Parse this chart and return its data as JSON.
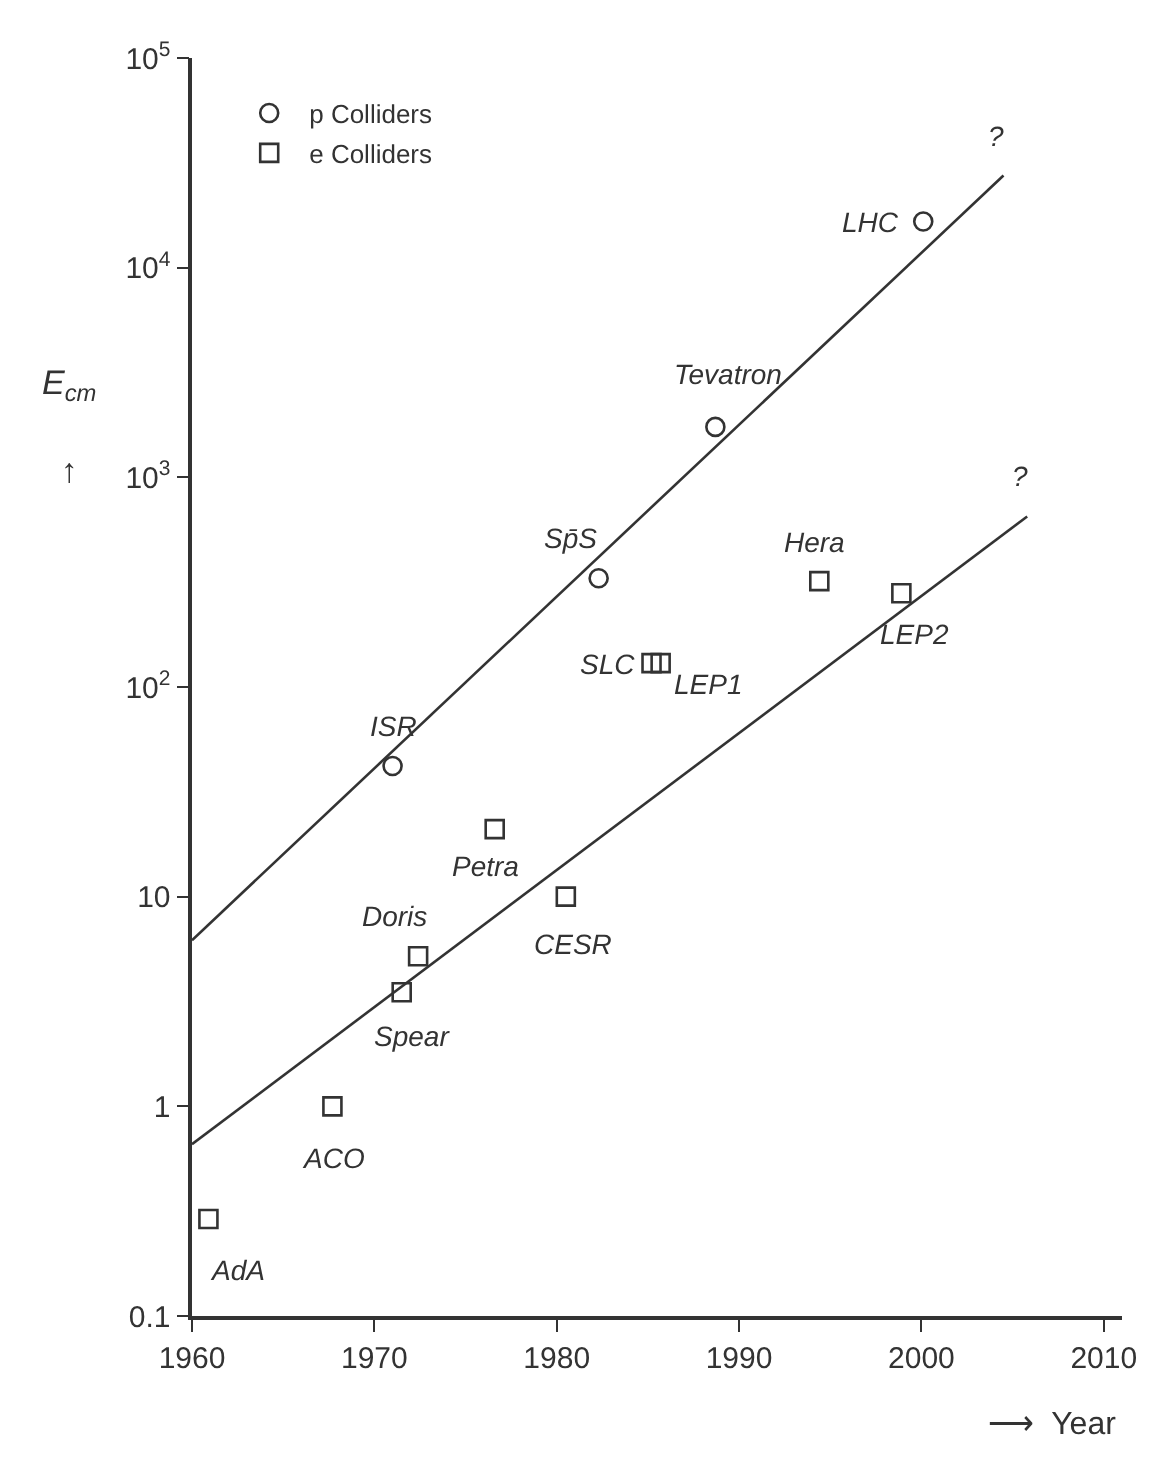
{
  "chart_data": {
    "type": "scatter",
    "xlabel": "⟶  Year",
    "ylabel": "E$_{cm}$\n\n↑",
    "xlim": [
      1960,
      2011
    ],
    "xticks": [
      1960,
      1970,
      1980,
      1990,
      2000,
      2010
    ],
    "ylim": [
      0.1,
      100000
    ],
    "log": true,
    "yticks": [
      0.1,
      1,
      10,
      {
        "value": 100,
        "label": "10$^{2}$"
      },
      {
        "value": 1000,
        "label": "10$^{3}$"
      },
      {
        "value": 10000,
        "label": "10$^{4}$"
      },
      {
        "value": 100000,
        "label": "10$^{5}$"
      }
    ],
    "grid": false,
    "legend": "top left",
    "series": [
      {
        "name": "p Colliders",
        "marker": "circle",
        "color": "#333333",
        "x": [
          1971,
          1982.3,
          1988.7,
          2000.1
        ],
        "values": [
          42,
          330,
          1740,
          16600
        ]
      },
      {
        "name": "e Colliders",
        "marker": "square",
        "color": "#333333",
        "x": [
          1960.9,
          1967.7,
          1971.5,
          1972.4,
          1976.6,
          1980.5,
          1985.2,
          1985.7,
          1994.4,
          1998.9
        ],
        "values": [
          0.29,
          1.0,
          3.5,
          5.2,
          21,
          10,
          130,
          130,
          320,
          280
        ]
      },
      {
        "type": "line",
        "line_style": "solid",
        "color": "#333333",
        "x": [
          1960,
          2004.5
        ],
        "values": [
          6.2,
          27500
        ]
      },
      {
        "type": "line",
        "line_style": "solid",
        "color": "#333333",
        "x": [
          1960,
          2005.8
        ],
        "values": [
          0.66,
          650
        ]
      }
    ],
    "annotations": [
      {
        "text": "AdA",
        "x": 1960.9,
        "y": 0.29
      },
      {
        "text": "ACO",
        "x": 1967.7,
        "y": 1.0
      },
      {
        "text": "Spear",
        "x": 1971.5,
        "y": 3.5
      },
      {
        "text": "Doris",
        "x": 1972.4,
        "y": 5.2
      },
      {
        "text": "Petra",
        "x": 1976.6,
        "y": 21
      },
      {
        "text": "CESR",
        "x": 1980.5,
        "y": 10
      },
      {
        "text": "ISR",
        "x": 1971,
        "y": 42
      },
      {
        "text": "Sp̄S",
        "x": 1982.3,
        "y": 330
      },
      {
        "text": "Tevatron",
        "x": 1988.7,
        "y": 1740
      },
      {
        "text": "LHC",
        "x": 2000.1,
        "y": 16600
      },
      {
        "text": "Hera",
        "x": 1994.4,
        "y": 320
      },
      {
        "text": "LEP2",
        "x": 1998.9,
        "y": 280
      },
      {
        "text": "SLC",
        "x": 1985.2,
        "y": 130
      },
      {
        "text": "LEP1",
        "x": 1985.7,
        "y": 130
      },
      "?",
      "?"
    ]
  }
}
